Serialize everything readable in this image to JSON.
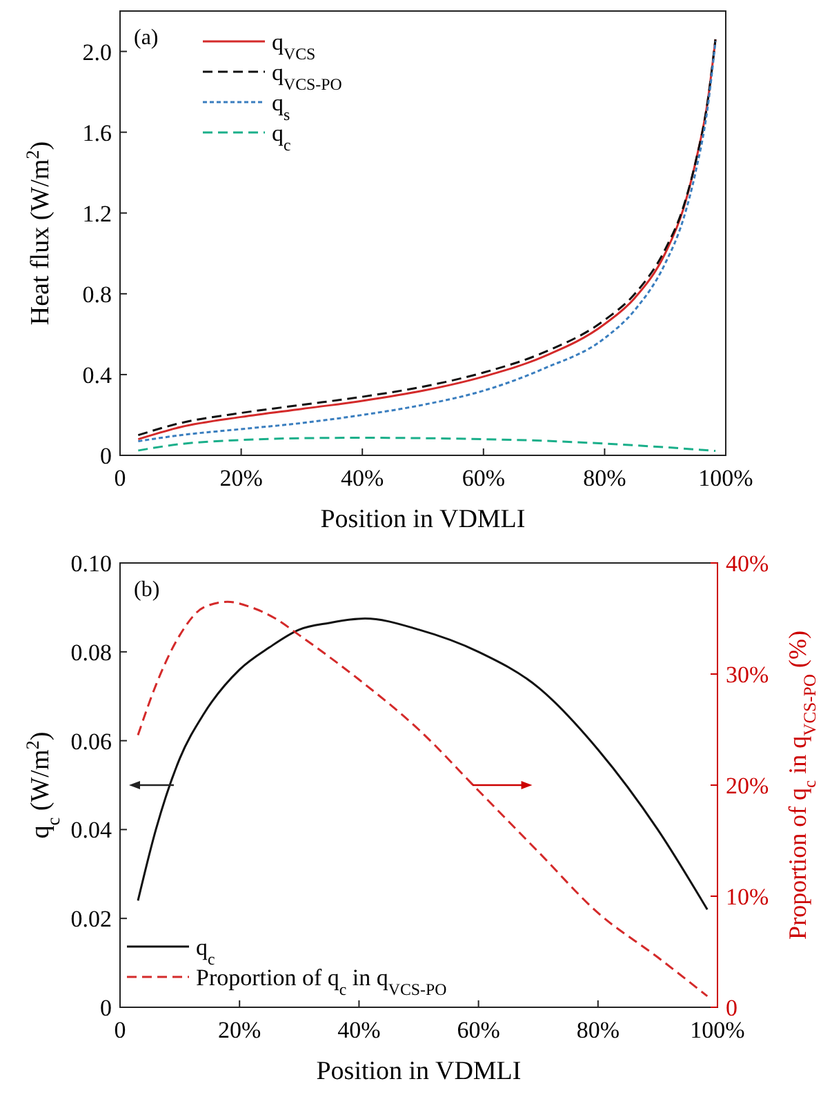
{
  "chart_data": [
    {
      "type": "line",
      "annotations": [
        "(a)"
      ],
      "ylabel": "Heat flux (W/m$^{2}$)",
      "xlabel": "Position in VDMLI",
      "xlim": [
        0,
        100
      ],
      "xticks": [
        0,
        {
          "value": 20,
          "label": "20%"
        },
        {
          "value": 40,
          "label": "40%"
        },
        {
          "value": 60,
          "label": "60%"
        },
        {
          "value": 80,
          "label": "80%"
        },
        {
          "value": 100,
          "label": "100%"
        }
      ],
      "ylim": [
        0,
        2.2
      ],
      "yticks": [
        0,
        0.4,
        0.8,
        1.2,
        1.6,
        {
          "value": 2.0,
          "label": "2.0"
        }
      ],
      "legend": "top left",
      "grid": false,
      "x": [
        3,
        10,
        20,
        30,
        40,
        50,
        60,
        70,
        80,
        85,
        90,
        93,
        95,
        97,
        98.3
      ],
      "series": [
        {
          "name": "q$_{VCS}$",
          "color": "#d42a2a",
          "line_style": "solid",
          "values": [
            0.08,
            0.14,
            0.19,
            0.23,
            0.27,
            0.32,
            0.39,
            0.49,
            0.65,
            0.78,
            1.0,
            1.22,
            1.45,
            1.75,
            2.06
          ]
        },
        {
          "name": "q$_{VCS-PO}$",
          "color": "#111111",
          "line_style": "dashed",
          "values": [
            0.1,
            0.16,
            0.21,
            0.25,
            0.29,
            0.34,
            0.41,
            0.51,
            0.67,
            0.8,
            1.02,
            1.23,
            1.45,
            1.75,
            2.06
          ]
        },
        {
          "name": "q$_{s}$",
          "color": "#3a7ebf",
          "line_style": "dotted",
          "values": [
            0.07,
            0.1,
            0.13,
            0.16,
            0.2,
            0.25,
            0.32,
            0.43,
            0.58,
            0.72,
            0.95,
            1.17,
            1.4,
            1.72,
            2.05
          ]
        },
        {
          "name": "q$_{c}$",
          "color": "#1aaf8a",
          "line_style": "dashed",
          "x": [
            3,
            10,
            20,
            30,
            40,
            50,
            60,
            70,
            80,
            90,
            98.3
          ],
          "values": [
            0.024,
            0.056,
            0.076,
            0.085,
            0.087,
            0.085,
            0.08,
            0.072,
            0.058,
            0.04,
            0.022
          ]
        }
      ]
    },
    {
      "type": "line",
      "annotations": [
        "(b)"
      ],
      "ylabel": "q$_{c}$ (W/m$^{2}$)",
      "y2label": "Proportion of q$_{c}$ in q$_{VCS-PO}$ (%)",
      "xlabel": "Position in VDMLI",
      "xlim": [
        0,
        100
      ],
      "xticks": [
        0,
        {
          "value": 20,
          "label": "20%"
        },
        {
          "value": 40,
          "label": "40%"
        },
        {
          "value": 60,
          "label": "60%"
        },
        {
          "value": 80,
          "label": "80%"
        },
        {
          "value": 100,
          "label": "100%"
        }
      ],
      "ylim": [
        0,
        0.1
      ],
      "yticks": [
        0,
        0.02,
        0.04,
        0.06,
        0.08,
        {
          "value": 0.1,
          "label": "0.10"
        }
      ],
      "y2lim": [
        0,
        40
      ],
      "y2ticks": [
        0,
        {
          "value": 10,
          "label": "10%"
        },
        {
          "value": 20,
          "label": "20%"
        },
        {
          "value": 30,
          "label": "30%"
        },
        {
          "value": 40,
          "label": "40%"
        }
      ],
      "legend": "bottom left",
      "grid": false,
      "series": [
        {
          "name": "q$_{c}$",
          "color": "#111111",
          "line_style": "solid",
          "x": [
            3,
            6,
            10,
            14,
            20,
            25,
            30,
            35,
            41,
            50,
            60,
            70,
            80,
            90,
            98.3
          ],
          "values": [
            0.024,
            0.04,
            0.056,
            0.066,
            0.076,
            0.081,
            0.085,
            0.0865,
            0.0875,
            0.085,
            0.08,
            0.072,
            0.058,
            0.04,
            0.022
          ]
        },
        {
          "name": "Proportion of q$_{c}$ in q$_{VCS-PO}$",
          "color": "#d42a2a",
          "line_style": "dashed",
          "axis": "y2",
          "x": [
            3,
            6,
            10,
            14,
            18,
            22,
            26,
            30,
            40,
            50,
            60,
            70,
            80,
            90,
            98.3
          ],
          "values": [
            24.5,
            29,
            33.5,
            36,
            36.5,
            36,
            35,
            33.5,
            29.5,
            25,
            19.5,
            14,
            8.5,
            4.5,
            1
          ]
        }
      ]
    }
  ]
}
